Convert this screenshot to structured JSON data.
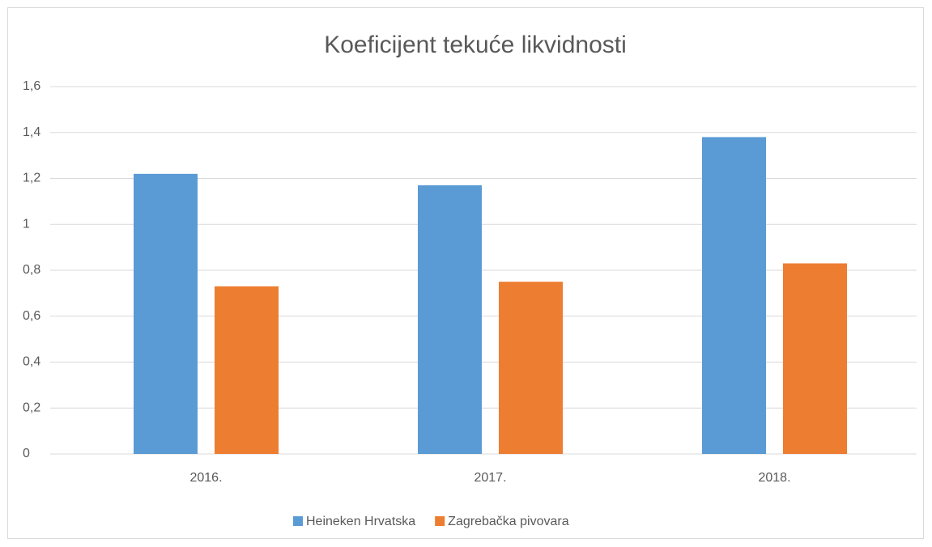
{
  "chart_data": {
    "type": "bar",
    "title": "Koeficijent tekuće likvidnosti",
    "categories": [
      "2016.",
      "2017.",
      "2018."
    ],
    "series": [
      {
        "name": "Heineken Hrvatska",
        "color": "#5b9bd5",
        "values": [
          1.22,
          1.17,
          1.38
        ]
      },
      {
        "name": "Zagrebačka pivovara",
        "color": "#ed7d31",
        "values": [
          0.73,
          0.75,
          0.83
        ]
      }
    ],
    "ylim": [
      0,
      1.6
    ],
    "yticks": [
      0,
      {
        "value": 0.2,
        "label": "0,2"
      },
      {
        "value": 0.4,
        "label": "0,4"
      },
      {
        "value": 0.6,
        "label": "0,6"
      },
      {
        "value": 0.8,
        "label": "0,8"
      },
      1,
      {
        "value": 1.2,
        "label": "1,2"
      },
      {
        "value": 1.4,
        "label": "1,4"
      },
      {
        "value": 1.6,
        "label": "1,6"
      }
    ],
    "grid": true,
    "legend": "bottom"
  }
}
